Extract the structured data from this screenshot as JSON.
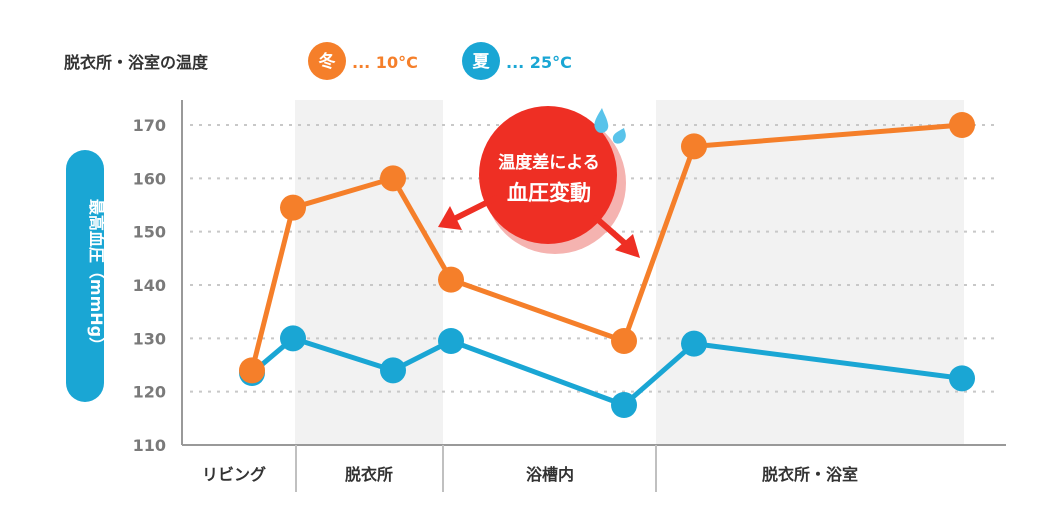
{
  "legend": {
    "title": "脱衣所・浴室の温度",
    "winter": {
      "badge": "冬",
      "value": "... 10°C"
    },
    "summer": {
      "badge": "夏",
      "value": "... 25°C"
    }
  },
  "annotation": {
    "line1": "温度差による",
    "line2": "血圧変動"
  },
  "colors": {
    "winter": "#f57f2a",
    "summer": "#1aa6d4",
    "annotation": "#ee2f24",
    "shade": "#f2f2f2",
    "grid": "#c8c8c8",
    "axis": "#999999"
  },
  "chart_data": {
    "type": "line",
    "ylabel": "最高血圧（mmHg）",
    "ylim": [
      110,
      170
    ],
    "yticks": [
      110,
      120,
      130,
      140,
      150,
      160,
      170
    ],
    "grid": "horizontal-dotted",
    "x_sections": [
      "リビング",
      "脱衣所",
      "浴槽内",
      "脱衣所・浴室"
    ],
    "x": [
      1,
      2,
      3,
      4,
      5,
      6,
      7
    ],
    "series": [
      {
        "name": "冬",
        "values": [
          124,
          154.5,
          160,
          141,
          129.5,
          166,
          170
        ]
      },
      {
        "name": "夏",
        "values": [
          123.5,
          130,
          124,
          129.5,
          117.5,
          129,
          122.5
        ]
      }
    ]
  }
}
